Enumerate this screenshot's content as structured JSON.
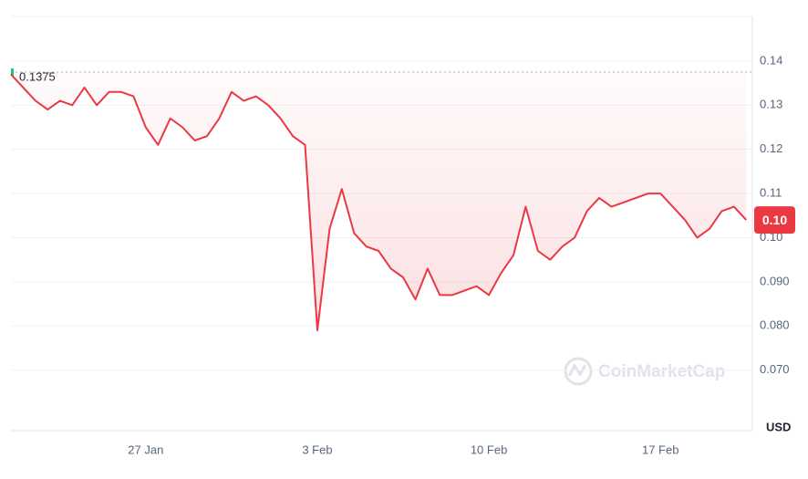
{
  "chart_data": {
    "type": "line",
    "categories": [
      null,
      null,
      null,
      null,
      null,
      null,
      null,
      null,
      null,
      null,
      null,
      "27 Jan",
      null,
      null,
      null,
      null,
      null,
      null,
      null,
      null,
      null,
      null,
      null,
      null,
      null,
      "3 Feb",
      null,
      null,
      null,
      null,
      null,
      null,
      null,
      null,
      null,
      null,
      null,
      null,
      null,
      "10 Feb",
      null,
      null,
      null,
      null,
      null,
      null,
      null,
      null,
      null,
      null,
      null,
      null,
      null,
      "17 Feb",
      null,
      null,
      null,
      null,
      null,
      null,
      null
    ],
    "series": [
      {
        "color": "#ea3943",
        "values": [
          0.137,
          0.134,
          0.131,
          0.129,
          0.131,
          0.13,
          0.134,
          0.13,
          0.133,
          0.133,
          0.132,
          0.125,
          0.121,
          0.127,
          0.125,
          0.122,
          0.123,
          0.127,
          0.133,
          0.131,
          0.132,
          0.13,
          0.127,
          0.123,
          0.121,
          0.079,
          0.102,
          0.111,
          0.101,
          0.098,
          0.097,
          0.093,
          0.091,
          0.086,
          0.093,
          0.087,
          0.087,
          0.088,
          0.089,
          0.087,
          0.092,
          0.096,
          0.107,
          0.097,
          0.095,
          0.098,
          0.1,
          0.106,
          0.109,
          0.107,
          0.108,
          0.109,
          0.11,
          0.11,
          0.107,
          0.104,
          0.1,
          0.102,
          0.106,
          0.107,
          0.104
        ]
      }
    ],
    "ylim": [
      0.0563,
      0.1501
    ],
    "yticks": [
      0.14,
      0.13,
      0.12,
      0.11,
      {
        "value": 0.1,
        "label": "0.10"
      },
      {
        "value": 0.09,
        "label": "0.090"
      },
      {
        "value": 0.08,
        "label": "0.080"
      },
      {
        "value": 0.07,
        "label": "0.070"
      }
    ],
    "grid": true,
    "start_price": 0.1375,
    "current_price": {
      "value": 0.104,
      "label": "0.10"
    },
    "currency": "USD",
    "watermark": "CoinMarketCap"
  }
}
